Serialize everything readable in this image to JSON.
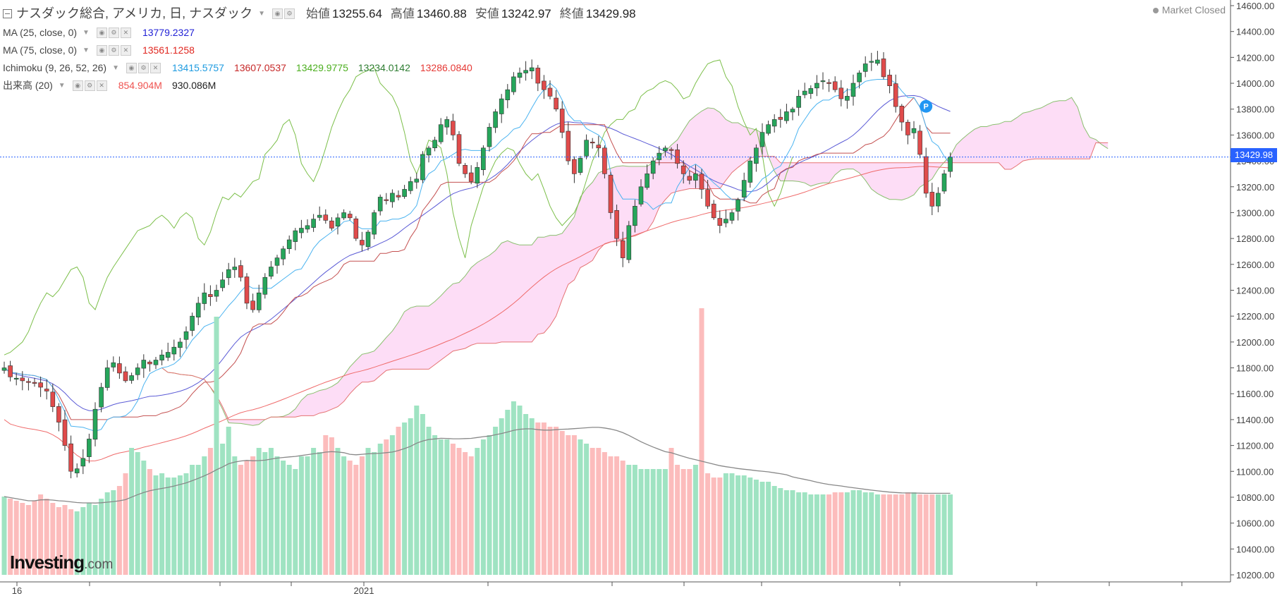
{
  "header": {
    "symbol_title": "ナスダック総合, アメリカ, 日, ナスダック",
    "open_label": "始値",
    "open_value": "13255.64",
    "high_label": "高値",
    "high_value": "13460.88",
    "low_label": "安値",
    "low_value": "13242.97",
    "close_label": "終値",
    "close_value": "13429.98"
  },
  "status": {
    "market_closed": "Market Closed"
  },
  "indicators": [
    {
      "name": "MA (25, close, 0)",
      "values": [
        "13779.2327"
      ],
      "colors": [
        "#1f1fd6"
      ]
    },
    {
      "name": "MA (75, close, 0)",
      "values": [
        "13561.1258"
      ],
      "colors": [
        "#e0261f"
      ]
    },
    {
      "name": "Ichimoku (9, 26, 52, 26)",
      "values": [
        "13415.5757",
        "13607.0537",
        "13429.9775",
        "13234.0142",
        "13286.0840"
      ],
      "colors": [
        "#1e9be0",
        "#c62828",
        "#4caf1f",
        "#2e7d32",
        "#e53935"
      ]
    },
    {
      "name": "出来高 (20)",
      "values": [
        "854.904M",
        "930.086M"
      ],
      "colors": [
        "#ef5350",
        "#222222"
      ]
    }
  ],
  "logo": {
    "brand": "Investing",
    "suffix": ".com"
  },
  "last_price_badge": "13429.98",
  "marker": {
    "label": "P"
  },
  "colors": {
    "up": "#26a65b",
    "down": "#e04b4b",
    "up_volume": "#9fe3c2",
    "down_volume": "#fcbcbc",
    "ma25": "#5b5bd6",
    "ma75": "#ef6b6b",
    "tenkan": "#4ab3f0",
    "kijun": "#c45050",
    "chikou": "#7cbf4a",
    "cloud_bull": "#fdd7f4",
    "cloud_bear": "#e6e3f8"
  },
  "chart_data": {
    "type": "candlestick",
    "y_axis": {
      "ticks": [
        "14600.00",
        "14400.00",
        "14200.00",
        "14000.00",
        "13800.00",
        "13600.00",
        "13400.00",
        "13200.00",
        "13000.00",
        "12800.00",
        "12600.00",
        "12400.00",
        "12200.00",
        "12000.00",
        "11800.00",
        "11600.00",
        "11400.00",
        "11200.00",
        "11000.00",
        "10800.00",
        "10600.00",
        "10400.00",
        "10200.00"
      ],
      "range": [
        10200,
        14600
      ]
    },
    "x_axis": {
      "tick_labels": [
        "16",
        "2021"
      ]
    },
    "grid": false,
    "last_price": 13429.98,
    "price_path": [
      11800,
      11730,
      11720,
      11700,
      11690,
      11680,
      11650,
      11620,
      11500,
      11380,
      11200,
      11000,
      11020,
      11100,
      11250,
      11480,
      11650,
      11800,
      11840,
      11760,
      11700,
      11740,
      11800,
      11860,
      11830,
      11860,
      11900,
      11920,
      11960,
      12000,
      12080,
      12200,
      12300,
      12380,
      12350,
      12400,
      12480,
      12560,
      12580,
      12500,
      12300,
      12250,
      12380,
      12500,
      12580,
      12650,
      12720,
      12790,
      12860,
      12880,
      12900,
      12950,
      12980,
      12940,
      12880,
      12960,
      13000,
      12960,
      12800,
      12750,
      12850,
      13000,
      13120,
      13100,
      13150,
      13120,
      13180,
      13240,
      13260,
      13450,
      13500,
      13560,
      13680,
      13720,
      13600,
      13380,
      13300,
      13240,
      13350,
      13500,
      13660,
      13780,
      13880,
      13950,
      14050,
      14080,
      14100,
      14120,
      14000,
      13950,
      13900,
      13800,
      13620,
      13400,
      13300,
      13420,
      13560,
      13540,
      13500,
      13300,
      13000,
      12800,
      12650,
      12900,
      13050,
      13200,
      13300,
      13400,
      13460,
      13500,
      13480,
      13380,
      13300,
      13250,
      13300,
      13180,
      13050,
      12960,
      12900,
      12950,
      13000,
      13100,
      13250,
      13400,
      13500,
      13620,
      13680,
      13720,
      13720,
      13780,
      13800,
      13900,
      13940,
      13960,
      14000,
      14020,
      14000,
      13950,
      13880,
      13900,
      14000,
      14080,
      14150,
      14170,
      14180,
      14050,
      13980,
      13820,
      13700,
      13600,
      13650,
      13450,
      13150,
      13050,
      13150,
      13300,
      13430
    ],
    "volume_path": [
      370,
      360,
      350,
      340,
      330,
      350,
      380,
      360,
      340,
      320,
      330,
      310,
      300,
      320,
      340,
      330,
      360,
      390,
      400,
      420,
      480,
      600,
      580,
      540,
      500,
      470,
      480,
      460,
      460,
      470,
      480,
      520,
      520,
      560,
      600,
      640,
      620,
      700,
      560,
      520,
      540,
      560,
      600,
      580,
      600,
      560,
      540,
      520,
      500,
      560,
      560,
      600,
      580,
      660,
      650,
      600,
      560,
      540,
      520,
      560,
      600,
      580,
      620,
      640,
      660,
      700,
      720,
      740,
      800,
      760,
      700,
      660,
      640,
      640,
      620,
      600,
      580,
      560,
      600,
      640,
      660,
      700,
      740,
      780,
      820,
      800,
      760,
      740,
      720,
      720,
      700,
      700,
      680,
      660,
      660,
      640,
      620,
      600,
      600,
      580,
      560,
      560,
      540,
      520,
      520,
      500,
      500,
      500,
      500,
      500,
      600,
      520,
      500,
      500,
      520,
      500,
      480,
      460,
      460,
      480,
      480,
      470,
      470,
      460,
      450,
      440,
      440,
      420,
      410,
      400,
      400,
      390,
      390,
      380,
      380,
      380,
      380,
      390,
      390,
      390,
      400,
      400,
      390,
      390,
      380,
      380,
      380,
      380,
      380,
      390,
      390,
      380,
      380,
      380,
      380,
      380,
      380
    ],
    "volume_spikes": {
      "index_35": 1220,
      "index_115": 1260
    }
  }
}
